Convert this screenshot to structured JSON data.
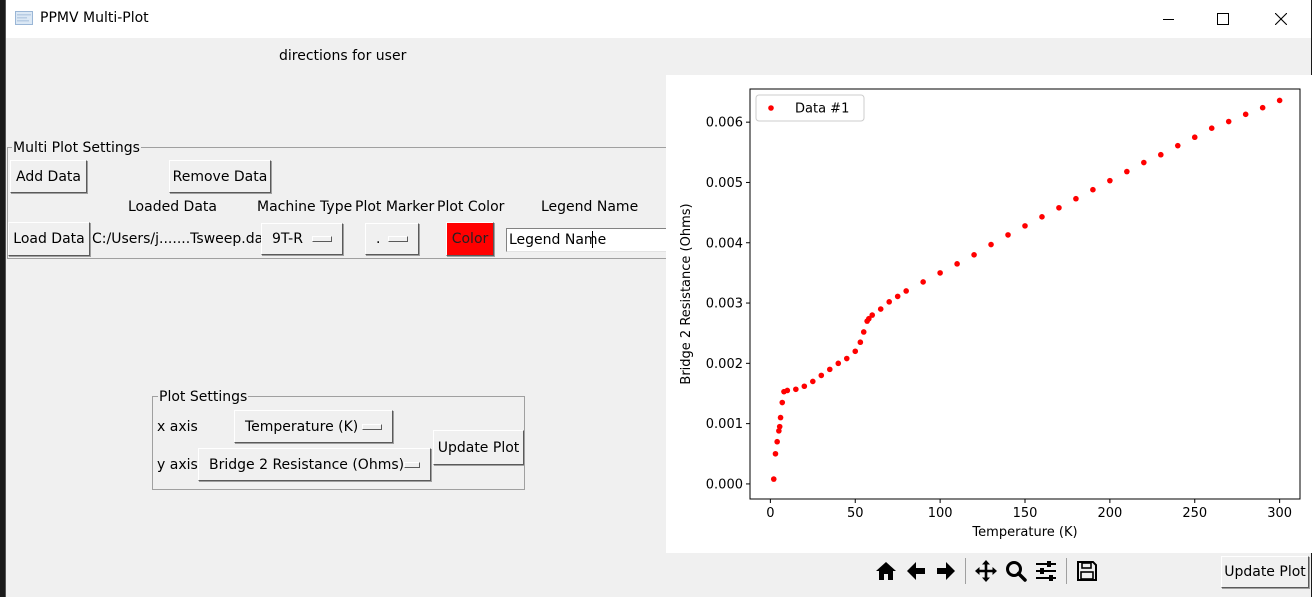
{
  "window": {
    "title": "PPMV Multi-Plot"
  },
  "directions": "directions for user",
  "multi_plot": {
    "group_label": "Multi Plot Settings",
    "add_data_label": "Add Data",
    "remove_data_label": "Remove Data",
    "headers": {
      "loaded_data": "Loaded Data",
      "machine_type": "Machine Type",
      "plot_marker": "Plot Marker",
      "plot_color": "Plot Color",
      "legend_name": "Legend Name"
    },
    "row": {
      "load_data_label": "Load Data",
      "file_path": "C:/Users/j.......Tsweep.dat",
      "machine_type": "9T-R",
      "plot_marker": ".",
      "color_label": "Color",
      "color_value": "#ff0000",
      "legend_name": "Legend Name"
    }
  },
  "plot_settings": {
    "group_label": "Plot Settings",
    "x_axis_label": "x axis",
    "x_axis_value": "Temperature (K)",
    "y_axis_label": "y axis",
    "y_axis_value": "Bridge 2 Resistance (Ohms)",
    "update_label": "Update Plot"
  },
  "toolbar": {
    "icons": [
      "home-icon",
      "back-arrow-icon",
      "forward-arrow-icon",
      "pan-icon",
      "zoom-icon",
      "configure-subplots-icon",
      "save-icon"
    ],
    "update_label": "Update Plot"
  },
  "chart_data": {
    "type": "scatter",
    "xlabel": "Temperature (K)",
    "ylabel": "Bridge 2 Resistance (Ohms)",
    "xlim": [
      -12,
      312
    ],
    "ylim": [
      -0.00025,
      0.00655
    ],
    "xticks": [
      0,
      50,
      100,
      150,
      200,
      250,
      300
    ],
    "yticks": [
      0.0,
      0.001,
      0.002,
      0.003,
      0.004,
      0.005,
      0.006
    ],
    "ytick_labels": [
      "0.000",
      "0.001",
      "0.002",
      "0.003",
      "0.004",
      "0.005",
      "0.006"
    ],
    "legend": {
      "position": "top-left",
      "entries": [
        "Data #1"
      ]
    },
    "grid": false,
    "series": [
      {
        "name": "Data #1",
        "color": "#ff0000",
        "marker": ".",
        "x": [
          2,
          3,
          4,
          5,
          5.5,
          6,
          7,
          8,
          10,
          15,
          20,
          25,
          30,
          35,
          40,
          45,
          50,
          53,
          55,
          57,
          58,
          60,
          65,
          70,
          75,
          80,
          90,
          100,
          110,
          120,
          130,
          140,
          150,
          160,
          170,
          180,
          190,
          200,
          210,
          220,
          230,
          240,
          250,
          260,
          270,
          280,
          290,
          300
        ],
        "y": [
          8e-05,
          0.0005,
          0.0007,
          0.00088,
          0.00095,
          0.0011,
          0.00135,
          0.00153,
          0.00155,
          0.00157,
          0.00162,
          0.0017,
          0.0018,
          0.0019,
          0.002,
          0.00208,
          0.0022,
          0.00235,
          0.00252,
          0.0027,
          0.00274,
          0.0028,
          0.0029,
          0.00302,
          0.00311,
          0.0032,
          0.00335,
          0.0035,
          0.00365,
          0.0038,
          0.00397,
          0.00413,
          0.00428,
          0.00443,
          0.00458,
          0.00473,
          0.00488,
          0.00503,
          0.00518,
          0.00533,
          0.00546,
          0.00561,
          0.00575,
          0.0059,
          0.00601,
          0.00613,
          0.00624,
          0.00636
        ]
      }
    ]
  }
}
